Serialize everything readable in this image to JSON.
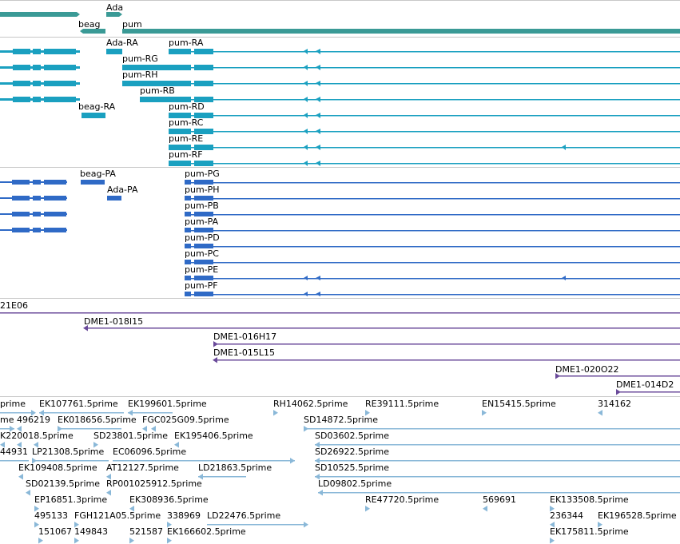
{
  "colors": {
    "gene": "#3a9a96",
    "transcript": "#1aa0c0",
    "protein": "#2f6ac6",
    "clone": "#6a4a9a",
    "est": "#8ab8d8",
    "divider": "#c8c8c8"
  },
  "tracks": {
    "genes": [
      {
        "label": "Ada",
        "strand": "+"
      },
      {
        "label": "beag",
        "strand": "-"
      },
      {
        "label": "pum",
        "strand": "+"
      }
    ],
    "transcripts": [
      "Ada-RA",
      "pum-RA",
      "pum-RG",
      "pum-RH",
      "pum-RB",
      "beag-RA",
      "pum-RD",
      "pum-RC",
      "pum-RE",
      "pum-RF"
    ],
    "proteins": [
      "beag-PA",
      "Ada-PA",
      "pum-PG",
      "pum-PH",
      "pum-PB",
      "pum-PA",
      "pum-PD",
      "pum-PC",
      "pum-PE",
      "pum-PF"
    ],
    "clones": [
      "21E06",
      "DME1-018I15",
      "DME1-016H17",
      "DME1-015L15",
      "DME1-020O22",
      "DME1-014D2"
    ],
    "ests": [
      "prime",
      "EK107761.5prime",
      "EK199601.5prime",
      "RH14062.5prime",
      "RE39111.5prime",
      "EN15415.5prime",
      "314162",
      "me",
      "496219",
      "EK018656.5prime",
      "FGC025G09.5prime",
      "SD14872.5prime",
      "K220018.5prime",
      "SD23801.5prime",
      "EK195406.5prime",
      "SD03602.5prime",
      "44931",
      "LP21308.5prime",
      "EC06096.5prime",
      "SD26922.5prime",
      "EK109408.5prime",
      "AT12127.5prime",
      "LD21863.5prime",
      "SD10525.5prime",
      "SD02139.5prime",
      "RP001025912.5prime",
      "LD09802.5prime",
      "EP16851.3prime",
      "EK308936.5prime",
      "RE47720.5prime",
      "569691",
      "EK133508.5prime",
      "495133",
      "FGH121A05.5prime",
      "338969",
      "LD22476.5prime",
      "236344",
      "EK196528.5prime",
      "151067",
      "149843",
      "521587",
      "EK166602.5prime",
      "EK175811.5prime"
    ]
  }
}
